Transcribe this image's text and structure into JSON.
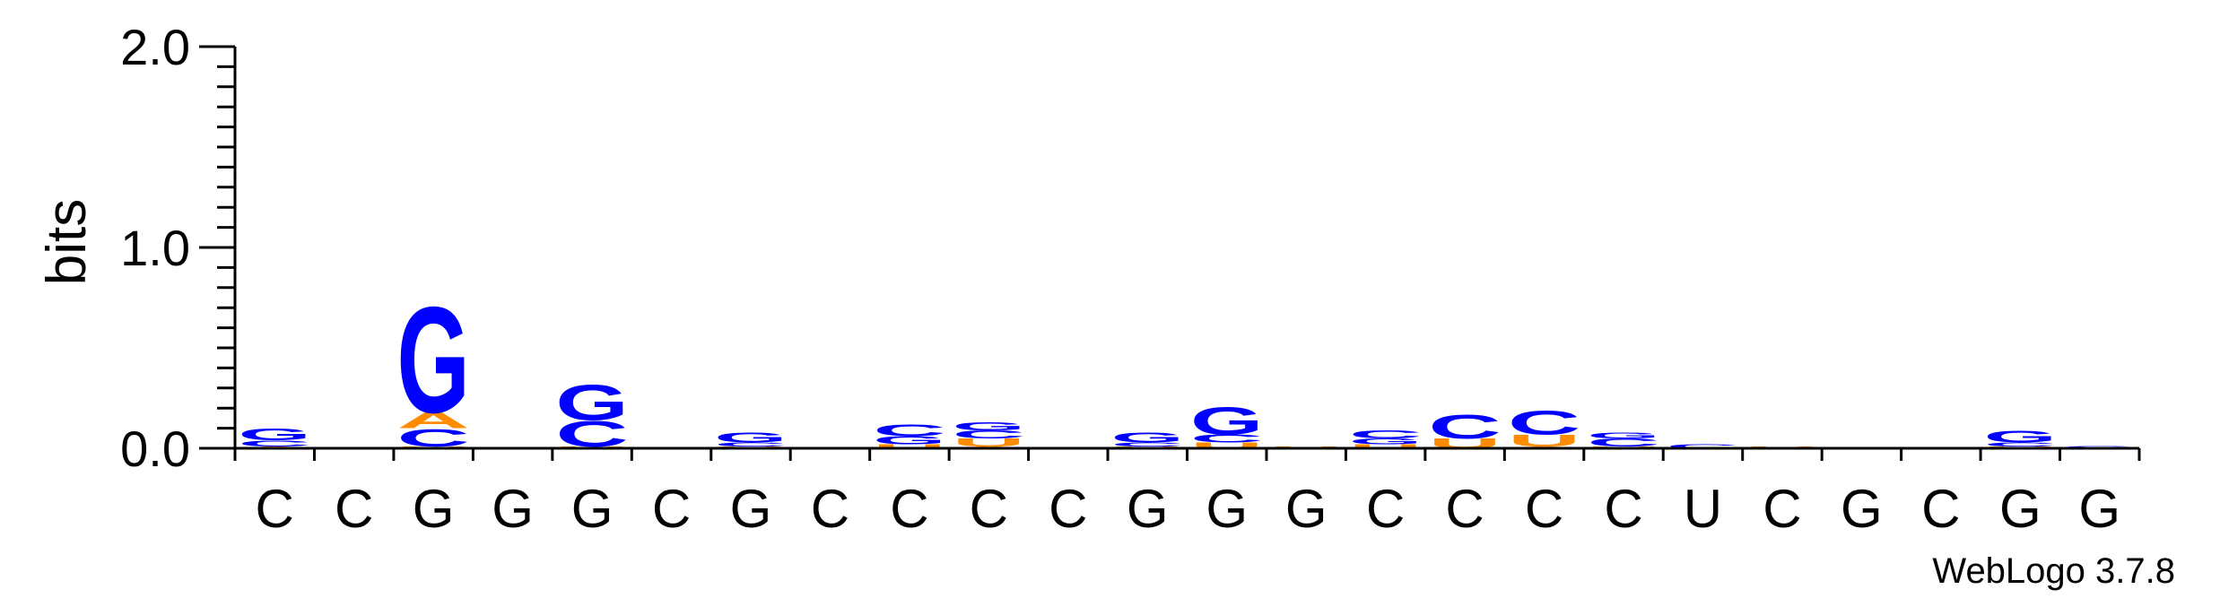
{
  "chart_data": {
    "type": "sequence-logo",
    "ylabel": "bits",
    "ylim": [
      0,
      2.0
    ],
    "yticks": [
      "0.0",
      "1.0",
      "2.0"
    ],
    "positions": [
      "C",
      "C",
      "G",
      "G",
      "G",
      "C",
      "G",
      "C",
      "C",
      "C",
      "C",
      "G",
      "G",
      "G",
      "C",
      "C",
      "C",
      "C",
      "U",
      "C",
      "G",
      "C",
      "G",
      "G"
    ],
    "colors": {
      "G": "#0000ff",
      "C": "#0000ff",
      "A": "#ff8c00",
      "U": "#ff8c00"
    },
    "stacks": [
      [
        {
          "l": "A",
          "h": 0.01
        },
        {
          "l": "C",
          "h": 0.03
        },
        {
          "l": "G",
          "h": 0.06
        }
      ],
      [],
      [
        {
          "l": "U",
          "h": 0.01
        },
        {
          "l": "C",
          "h": 0.09
        },
        {
          "l": "A",
          "h": 0.08
        },
        {
          "l": "G",
          "h": 0.54
        }
      ],
      [],
      [
        {
          "l": "U",
          "h": 0.01
        },
        {
          "l": "C",
          "h": 0.13
        },
        {
          "l": "G",
          "h": 0.18
        }
      ],
      [],
      [
        {
          "l": "U",
          "h": 0.01
        },
        {
          "l": "C",
          "h": 0.02
        },
        {
          "l": "G",
          "h": 0.05
        }
      ],
      [],
      [
        {
          "l": "U",
          "h": 0.02
        },
        {
          "l": "G",
          "h": 0.04
        },
        {
          "l": "C",
          "h": 0.06
        }
      ],
      [
        {
          "l": "A",
          "h": 0.01
        },
        {
          "l": "U",
          "h": 0.04
        },
        {
          "l": "C",
          "h": 0.04
        },
        {
          "l": "G",
          "h": 0.04
        }
      ],
      [],
      [
        {
          "l": "U",
          "h": 0.01
        },
        {
          "l": "C",
          "h": 0.02
        },
        {
          "l": "G",
          "h": 0.05
        }
      ],
      [
        {
          "l": "U",
          "h": 0.03
        },
        {
          "l": "C",
          "h": 0.04
        },
        {
          "l": "G",
          "h": 0.14
        }
      ],
      [
        {
          "l": "U",
          "h": 0.01
        }
      ],
      [
        {
          "l": "U",
          "h": 0.02
        },
        {
          "l": "G",
          "h": 0.03
        },
        {
          "l": "C",
          "h": 0.04
        }
      ],
      [
        {
          "l": "U",
          "h": 0.05
        },
        {
          "l": "C",
          "h": 0.12
        }
      ],
      [
        {
          "l": "A",
          "h": 0.01
        },
        {
          "l": "U",
          "h": 0.06
        },
        {
          "l": "C",
          "h": 0.12
        }
      ],
      [
        {
          "l": "U",
          "h": 0.01
        },
        {
          "l": "C",
          "h": 0.04
        },
        {
          "l": "G",
          "h": 0.03
        }
      ],
      [
        {
          "l": "C",
          "h": 0.02
        }
      ],
      [
        {
          "l": "U",
          "h": 0.01
        }
      ],
      [],
      [],
      [
        {
          "l": "U",
          "h": 0.01
        },
        {
          "l": "C",
          "h": 0.02
        },
        {
          "l": "G",
          "h": 0.06
        }
      ],
      [
        {
          "l": "G",
          "h": 0.01
        }
      ]
    ],
    "credit": "WebLogo 3.7.8"
  }
}
